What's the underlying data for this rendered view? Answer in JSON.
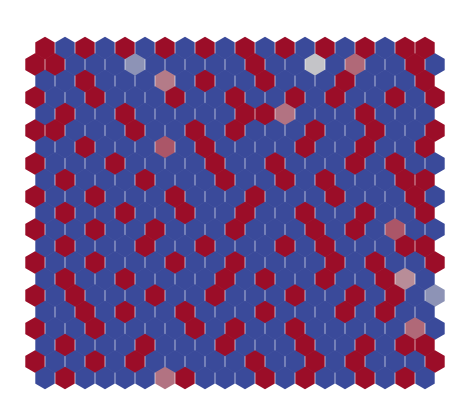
{
  "colormap": [
    [
      0,
      "#3a4a9a"
    ],
    [
      0.5,
      "#c4c4c8"
    ],
    [
      1,
      "#9b0d28"
    ]
  ],
  "cells": [
    [
      1,
      0,
      1,
      0,
      1,
      0,
      1,
      0,
      1,
      0,
      1,
      0,
      1,
      0,
      1,
      0,
      1,
      0,
      1,
      1
    ],
    [
      1,
      1,
      0,
      0,
      0,
      0.3,
      0,
      0,
      0,
      0,
      0,
      1,
      0,
      0,
      0.5,
      0,
      0.75,
      0,
      0,
      1,
      0
    ],
    [
      0,
      0,
      1,
      0,
      0,
      0,
      0.7,
      0,
      1,
      0,
      0,
      1,
      0,
      0,
      0,
      1,
      0,
      0,
      0,
      1
    ],
    [
      1,
      0,
      0,
      1,
      0,
      0,
      0,
      1,
      0,
      0,
      1,
      0,
      0,
      1,
      0,
      1,
      0,
      0,
      1,
      0,
      1
    ],
    [
      0,
      1,
      0,
      0,
      1,
      0,
      0,
      0,
      0,
      0,
      1,
      1,
      0.72,
      0,
      0,
      0,
      1,
      0,
      0,
      0
    ],
    [
      1,
      1,
      0,
      0,
      0,
      1,
      0,
      0,
      1,
      0,
      1,
      0,
      0,
      0,
      1,
      0,
      0,
      1,
      0,
      0,
      1
    ],
    [
      0,
      0,
      1,
      0,
      0,
      0,
      0.8,
      0,
      1,
      0,
      0,
      0,
      0,
      1,
      0,
      0,
      1,
      0,
      0,
      1
    ],
    [
      1,
      0,
      0,
      0,
      1,
      0,
      0,
      0,
      0,
      1,
      0,
      0,
      1,
      0,
      0,
      0,
      1,
      0,
      1,
      0,
      0
    ],
    [
      0,
      1,
      0,
      0,
      0,
      1,
      0,
      0,
      0,
      1,
      0,
      0,
      1,
      0,
      1,
      0,
      0,
      0,
      1,
      1
    ],
    [
      1,
      0,
      0,
      1,
      0,
      0,
      0,
      1,
      0,
      0,
      0,
      1,
      0,
      0,
      0,
      1,
      0,
      0,
      0,
      1,
      0
    ],
    [
      0,
      1,
      0,
      0,
      1,
      0,
      0,
      1,
      0,
      0,
      1,
      0,
      0,
      1,
      0,
      0,
      1,
      0,
      0,
      1
    ],
    [
      1,
      0,
      0,
      1,
      0,
      0,
      1,
      0,
      0,
      0,
      1,
      0,
      0,
      0,
      1,
      0,
      1,
      0,
      0.8,
      0,
      0
    ],
    [
      0,
      1,
      0,
      0,
      0,
      1,
      0,
      0,
      1,
      0,
      0,
      0,
      1,
      0,
      1,
      0,
      0,
      0,
      1,
      1
    ],
    [
      1,
      0,
      0,
      1,
      0,
      0,
      0,
      1,
      0,
      0,
      1,
      0,
      0,
      0,
      0,
      1,
      0,
      1,
      0,
      0,
      1
    ],
    [
      0,
      1,
      0,
      0,
      1,
      0,
      0,
      0,
      0,
      1,
      0,
      1,
      0,
      0,
      1,
      0,
      0,
      1,
      0.65,
      0
    ],
    [
      1,
      0,
      1,
      0,
      0,
      0,
      1,
      0,
      0,
      1,
      0,
      0,
      0,
      1,
      0,
      0,
      1,
      0,
      1,
      0,
      0.3
    ],
    [
      0,
      0,
      1,
      0,
      1,
      0,
      0,
      1,
      0,
      0,
      0,
      1,
      0,
      0,
      0,
      1,
      0,
      1,
      0,
      0
    ],
    [
      1,
      0,
      0,
      1,
      0,
      0,
      0,
      0,
      1,
      0,
      1,
      0,
      0,
      1,
      0,
      0,
      0,
      0,
      0,
      0.75,
      0
    ],
    [
      0,
      1,
      0,
      0,
      0,
      1,
      0,
      0,
      0,
      1,
      0,
      0,
      0,
      1,
      0,
      0,
      1,
      0,
      1,
      1
    ],
    [
      1,
      0,
      0,
      1,
      0,
      1,
      0,
      0,
      0,
      0,
      0,
      1,
      0,
      0,
      1,
      0,
      1,
      0,
      0,
      0,
      1
    ],
    [
      0,
      1,
      0,
      0,
      0,
      0,
      0.72,
      1,
      0,
      0,
      0,
      1,
      0,
      1,
      0,
      0,
      1,
      0,
      1,
      0
    ]
  ]
}
